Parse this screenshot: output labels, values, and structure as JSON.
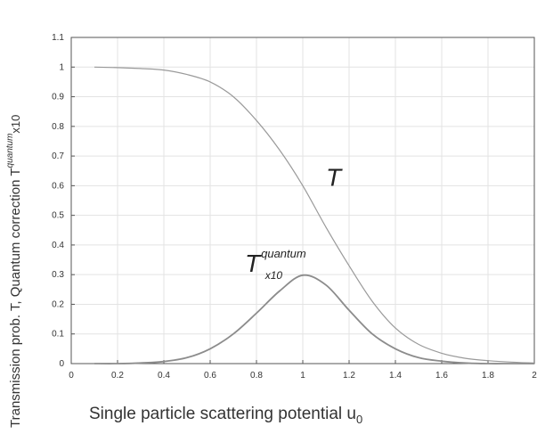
{
  "chart_data": {
    "type": "line",
    "xlabel": "Single particle scattering potential u",
    "xlabel_sub": "0",
    "ylabel": "Transmission prob. T, Quantum correction T",
    "ylabel_sup": "quantum",
    "ylabel_suffix": "x10",
    "xlim": [
      0,
      2
    ],
    "ylim": [
      0,
      1.1
    ],
    "grid": true,
    "x_ticks": [
      0,
      0.2,
      0.4,
      0.6,
      0.8,
      1,
      1.2,
      1.4,
      1.6,
      1.8,
      2
    ],
    "x_tick_labels": [
      "0",
      "0.2",
      "0.4",
      "0.6",
      "0.8",
      "1",
      "1.2",
      "1.4",
      "1.6",
      "1.8",
      "2"
    ],
    "y_ticks": [
      0,
      0.1,
      0.2,
      0.3,
      0.4,
      0.5,
      0.6,
      0.7,
      0.8,
      0.9,
      1,
      1.1
    ],
    "y_tick_labels": [
      "0",
      "0.1",
      "0.2",
      "0.3",
      "0.4",
      "0.5",
      "0.6",
      "0.7",
      "0.8",
      "0.9",
      "1",
      "1.1"
    ],
    "series": [
      {
        "x": [
          0.1,
          0.2,
          0.3,
          0.4,
          0.5,
          0.6,
          0.7,
          0.8,
          0.9,
          1.0,
          1.1,
          1.2,
          1.3,
          1.4,
          1.5,
          1.6,
          1.7,
          1.8,
          1.9,
          2.0
        ],
        "values": [
          1.0,
          0.998,
          0.995,
          0.99,
          0.975,
          0.95,
          0.9,
          0.82,
          0.72,
          0.6,
          0.46,
          0.33,
          0.21,
          0.12,
          0.065,
          0.035,
          0.018,
          0.01,
          0.005,
          0.002
        ],
        "color": "#9a9a9a"
      },
      {
        "x": [
          0.1,
          0.2,
          0.3,
          0.4,
          0.5,
          0.6,
          0.7,
          0.8,
          0.9,
          1.0,
          1.1,
          1.2,
          1.3,
          1.4,
          1.5,
          1.6,
          1.7,
          1.8,
          1.9,
          2.0
        ],
        "values": [
          0.0,
          0.0,
          0.002,
          0.007,
          0.02,
          0.05,
          0.1,
          0.17,
          0.245,
          0.298,
          0.265,
          0.18,
          0.1,
          0.05,
          0.02,
          0.008,
          0.002,
          0.0,
          0.0,
          0.0
        ],
        "color": "#8c8c8c"
      }
    ],
    "annotations": [
      {
        "text": "T",
        "x": 1.1,
        "y": 0.6
      },
      {
        "text": "T",
        "sup": "quantum",
        "sub": "x10",
        "x": 0.75,
        "y": 0.31
      }
    ]
  }
}
